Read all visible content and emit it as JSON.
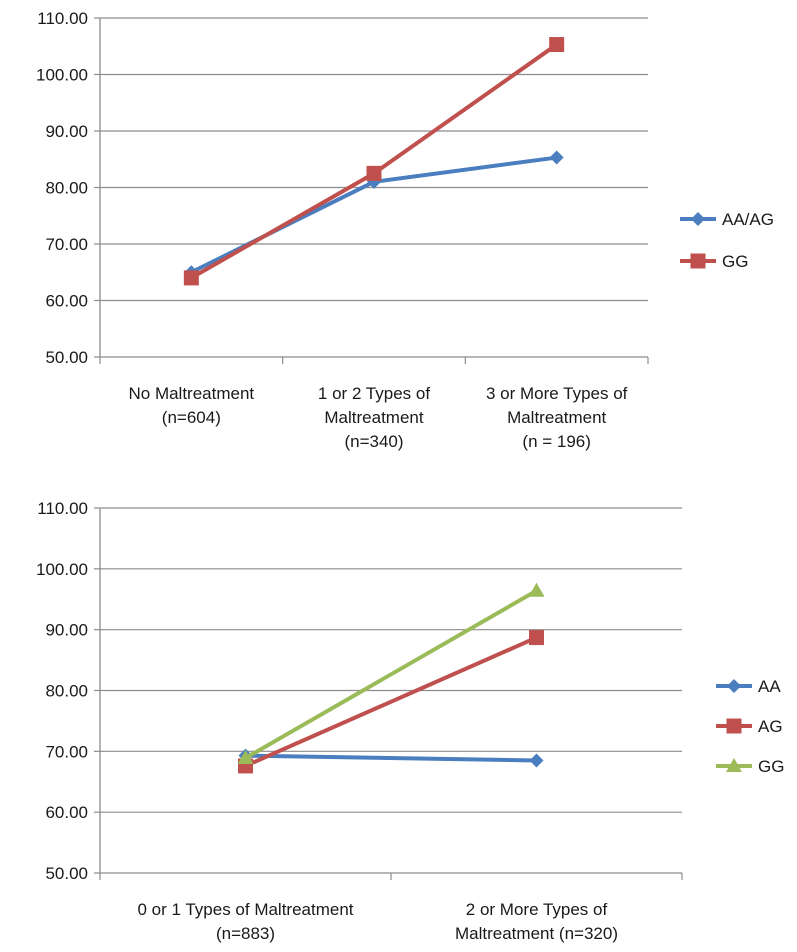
{
  "colors": {
    "blue": "#4a7ebf",
    "red": "#c0504d",
    "green": "#9bbb59",
    "axis": "#8c8c8c"
  },
  "chart_data": [
    {
      "type": "line",
      "categories": [
        [
          "No Maltreatment",
          "(n=604)"
        ],
        [
          "1 or 2 Types of",
          "Maltreatment",
          "(n=340)"
        ],
        [
          "3 or More Types of",
          "Maltreatment",
          "(n = 196)"
        ]
      ],
      "series": [
        {
          "name": "AA/AG",
          "values": [
            65.0,
            81.0,
            85.3
          ],
          "color": "#4a7ebf",
          "marker": "diamond"
        },
        {
          "name": "GG",
          "values": [
            64.0,
            82.5,
            105.3
          ],
          "color": "#c0504d",
          "marker": "square"
        }
      ],
      "ylim": [
        50,
        110
      ],
      "yticks": [
        "50.00",
        "60.00",
        "70.00",
        "80.00",
        "90.00",
        "100.00",
        "110.00"
      ],
      "title": "",
      "xlabel": "",
      "ylabel": "",
      "legend": "right"
    },
    {
      "type": "line",
      "categories": [
        [
          "0 or 1 Types of Maltreatment",
          "(n=883)"
        ],
        [
          "2 or More Types of",
          "Maltreatment (n=320)"
        ]
      ],
      "series": [
        {
          "name": "AA",
          "values": [
            69.3,
            68.5
          ],
          "color": "#4a7ebf",
          "marker": "diamond"
        },
        {
          "name": "AG",
          "values": [
            67.6,
            88.7
          ],
          "color": "#c0504d",
          "marker": "square"
        },
        {
          "name": "GG",
          "values": [
            68.9,
            96.4
          ],
          "color": "#9bbb59",
          "marker": "triangle"
        }
      ],
      "ylim": [
        50,
        110
      ],
      "yticks": [
        "50.00",
        "60.00",
        "70.00",
        "80.00",
        "90.00",
        "100.00",
        "110.00"
      ],
      "title": "",
      "xlabel": "",
      "ylabel": "",
      "legend": "right"
    }
  ]
}
